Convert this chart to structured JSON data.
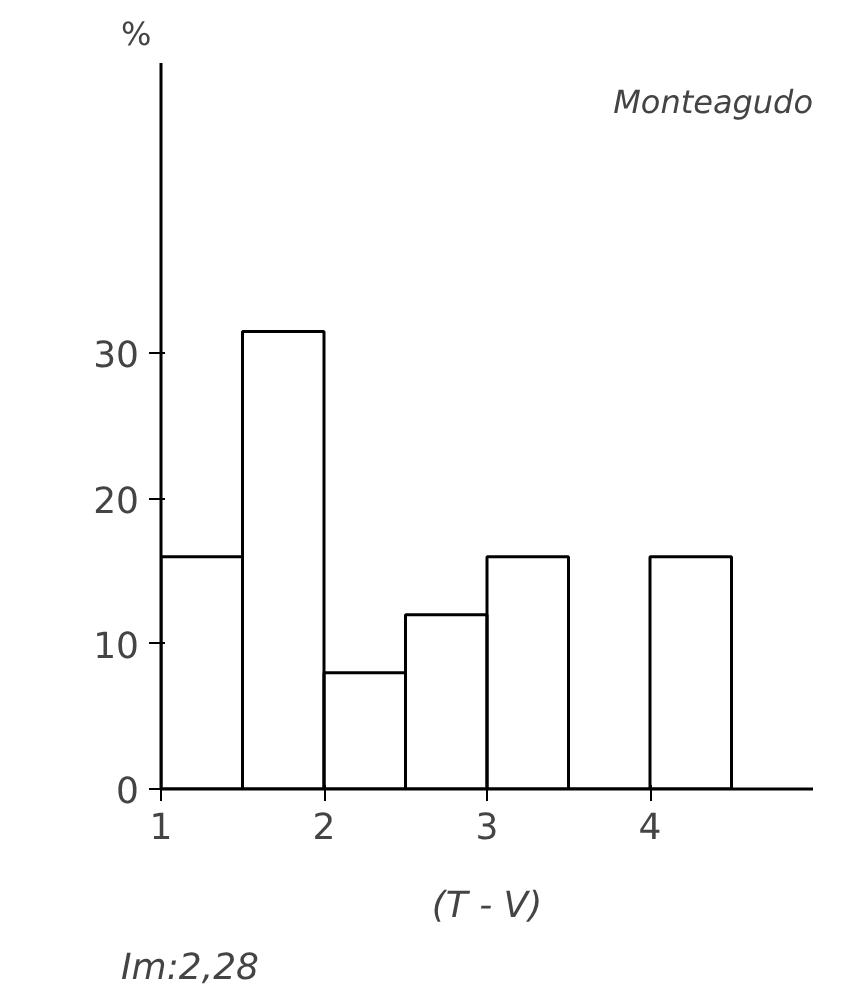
{
  "chart_data": {
    "type": "histogram",
    "title": "Monteagudo",
    "ylabel": "%",
    "xlabel": "(T - V)",
    "annotations": [
      "Im:2,28"
    ],
    "bins": [
      1,
      1.5,
      2,
      2.5,
      3,
      3.5,
      4,
      4.5
    ],
    "values": [
      16,
      31.5,
      8,
      12,
      16,
      0,
      16
    ],
    "color": "#000000",
    "xlim": [
      1,
      5
    ],
    "ylim": [
      0,
      50
    ],
    "xticks": [
      1,
      2,
      3,
      4
    ],
    "yticks": [
      0,
      10,
      20,
      30
    ],
    "grid": false
  }
}
